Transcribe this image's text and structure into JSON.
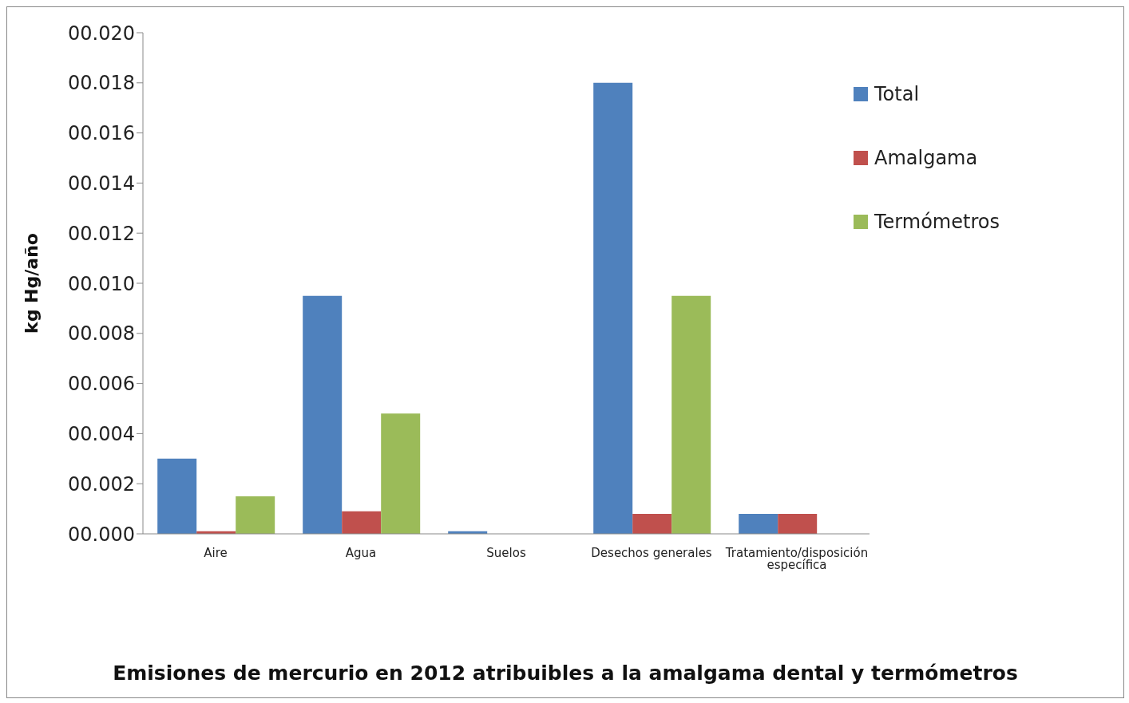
{
  "chart_data": {
    "type": "bar",
    "title": "Emisiones de mercurio en 2012 atribuibles a la amalgama dental y termómetros",
    "ylabel": "kg Hg/año",
    "categories": [
      "Aire",
      "Agua",
      "Suelos",
      "Desechos generales",
      "Tratamiento/disposición específica"
    ],
    "series": [
      {
        "name": "Total",
        "color": "#4f81bd",
        "values": [
          0.003,
          0.0095,
          0.0001,
          0.018,
          0.0008
        ]
      },
      {
        "name": "Amalgama",
        "color": "#c0504d",
        "values": [
          0.0001,
          0.0009,
          0,
          0.0008,
          0.0008
        ]
      },
      {
        "name": "Termómetros",
        "color": "#9bbb59",
        "values": [
          0.0015,
          0.0048,
          0,
          0.0095,
          0
        ]
      }
    ],
    "ylim": [
      0,
      0.02
    ],
    "yticks": [
      {
        "value": 0,
        "label": "00.000"
      },
      {
        "value": 0.002,
        "label": "00.002"
      },
      {
        "value": 0.004,
        "label": "00.004"
      },
      {
        "value": 0.006,
        "label": "00.006"
      },
      {
        "value": 0.008,
        "label": "00.008"
      },
      {
        "value": 0.01,
        "label": "00.010"
      },
      {
        "value": 0.012,
        "label": "00.012"
      },
      {
        "value": 0.014,
        "label": "00.014"
      },
      {
        "value": 0.016,
        "label": "00.016"
      },
      {
        "value": 0.018,
        "label": "00.018"
      },
      {
        "value": 0.02,
        "label": "00.020"
      }
    ],
    "legend": "top right"
  }
}
